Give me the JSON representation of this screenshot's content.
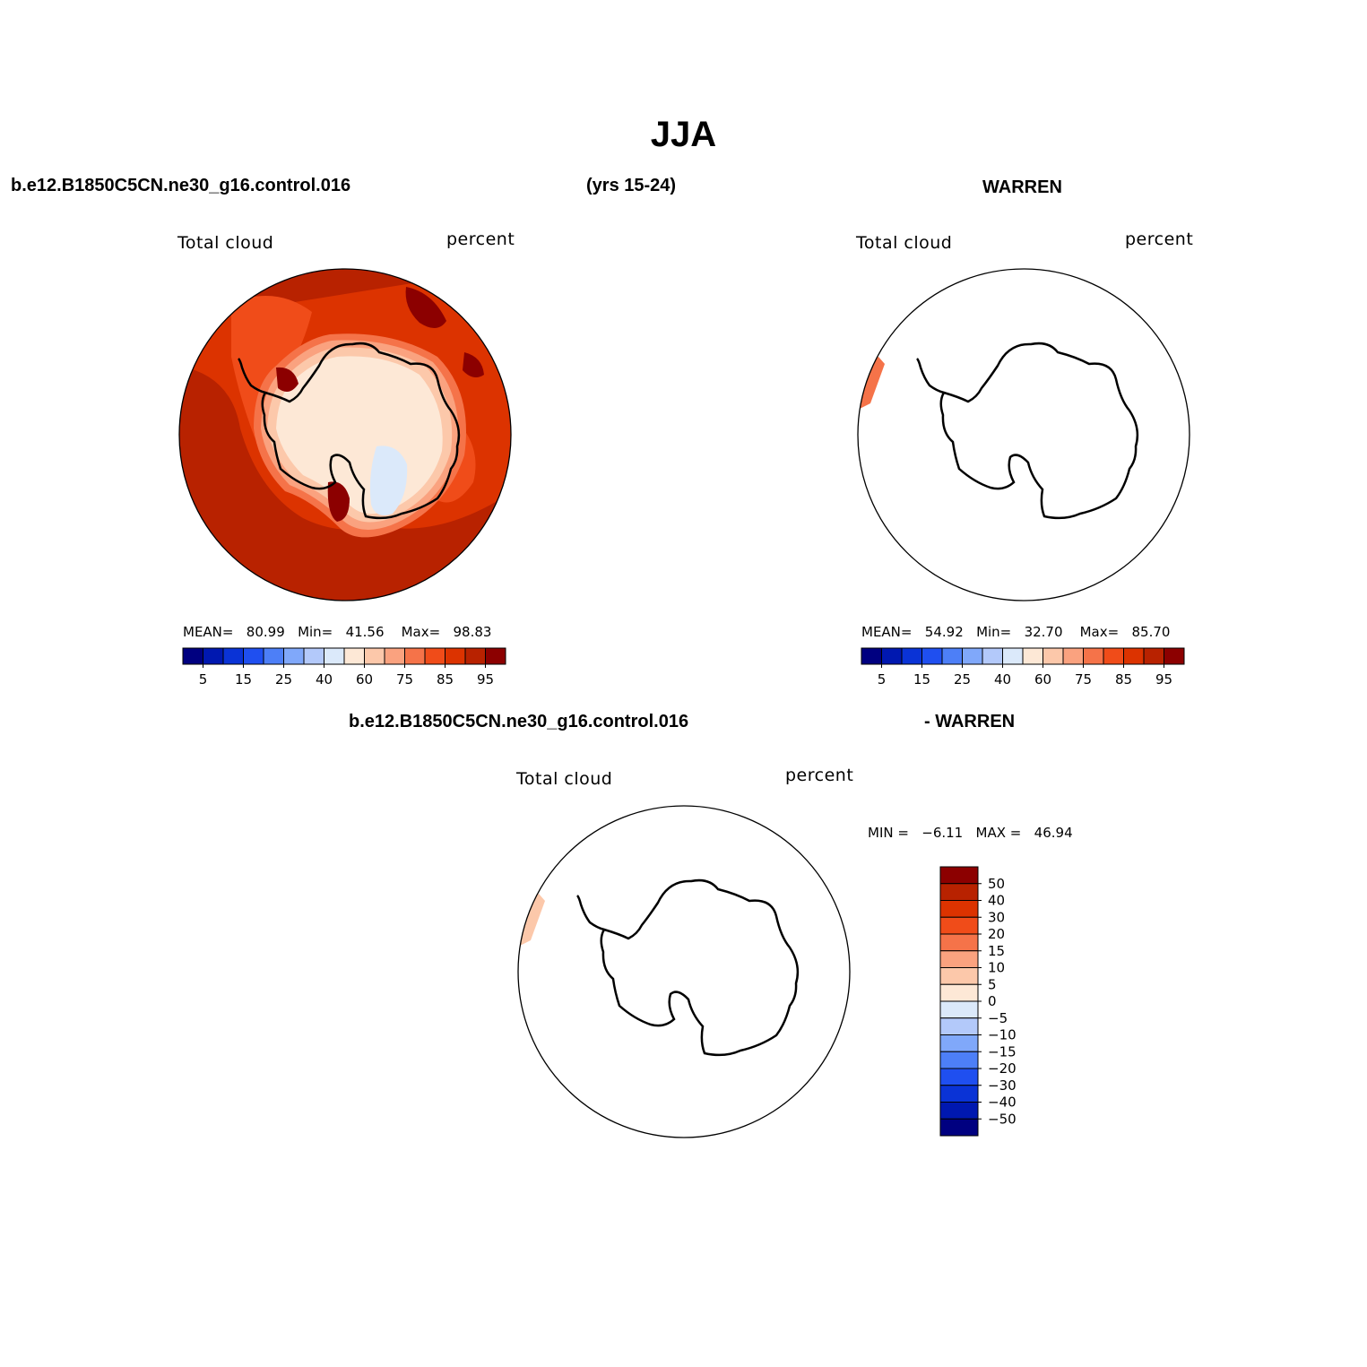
{
  "figure": {
    "title": "JJA",
    "left_header": "b.e12.B1850C5CN.ne30_g16.control.016",
    "years": "(yrs 15-24)",
    "right_header": "WARREN",
    "diff_header_left": "b.e12.B1850C5CN.ne30_g16.control.016",
    "diff_header_right": "- WARREN"
  },
  "panels": {
    "model": {
      "variable": "Total cloud",
      "units": "percent",
      "stats": {
        "mean_label": "MEAN=",
        "mean": "80.99",
        "min_label": "Min=",
        "min": "41.56",
        "max_label": "Max=",
        "max": "98.83"
      }
    },
    "obs": {
      "variable": "Total cloud",
      "units": "percent",
      "stats": {
        "mean_label": "MEAN=",
        "mean": "54.92",
        "min_label": "Min=",
        "min": "32.70",
        "max_label": "Max=",
        "max": "85.70"
      }
    },
    "diff": {
      "variable": "Total cloud",
      "units": "percent",
      "minmax": {
        "min_label": "MIN =",
        "min": "−6.11",
        "max_label": "MAX =",
        "max": "46.94"
      }
    }
  },
  "colorbars": {
    "abs": {
      "colors": [
        "#000080",
        "#0018b0",
        "#0a33d6",
        "#1f4ff0",
        "#4d7ff7",
        "#80a8fa",
        "#b3c9fa",
        "#dbe9fa",
        "#fde8d6",
        "#fcc8aa",
        "#faa27f",
        "#f57349",
        "#f04c19",
        "#dc3300",
        "#b82200",
        "#8c0000"
      ],
      "tick_labels": [
        "5",
        "15",
        "25",
        "40",
        "60",
        "75",
        "85",
        "95"
      ]
    },
    "diff": {
      "colors": [
        "#8c0000",
        "#b82200",
        "#dc3300",
        "#f04c19",
        "#f57349",
        "#faa27f",
        "#fcc8aa",
        "#fde8d6",
        "#dbe9fa",
        "#b3c9fa",
        "#80a8fa",
        "#4d7ff7",
        "#1f4ff0",
        "#0a33d6",
        "#0018b0",
        "#000080"
      ],
      "tick_labels": [
        "50",
        "40",
        "30",
        "20",
        "15",
        "10",
        "5",
        "0",
        "−5",
        "−10",
        "−15",
        "−20",
        "−30",
        "−40",
        "−50"
      ]
    }
  },
  "map_colors": {
    "ocean_high": "#b82200",
    "ocean_mid": "#dc3300",
    "ocean_band": "#f04c19",
    "ring1": "#f57349",
    "ring2": "#faa27f",
    "ring3": "#fcc8aa",
    "interior": "#fde8d6",
    "interior_low": "#dbe9fa",
    "max_patch": "#8c0000",
    "obs_patch": "#f57349",
    "diff_patch": "#fcc8aa"
  }
}
